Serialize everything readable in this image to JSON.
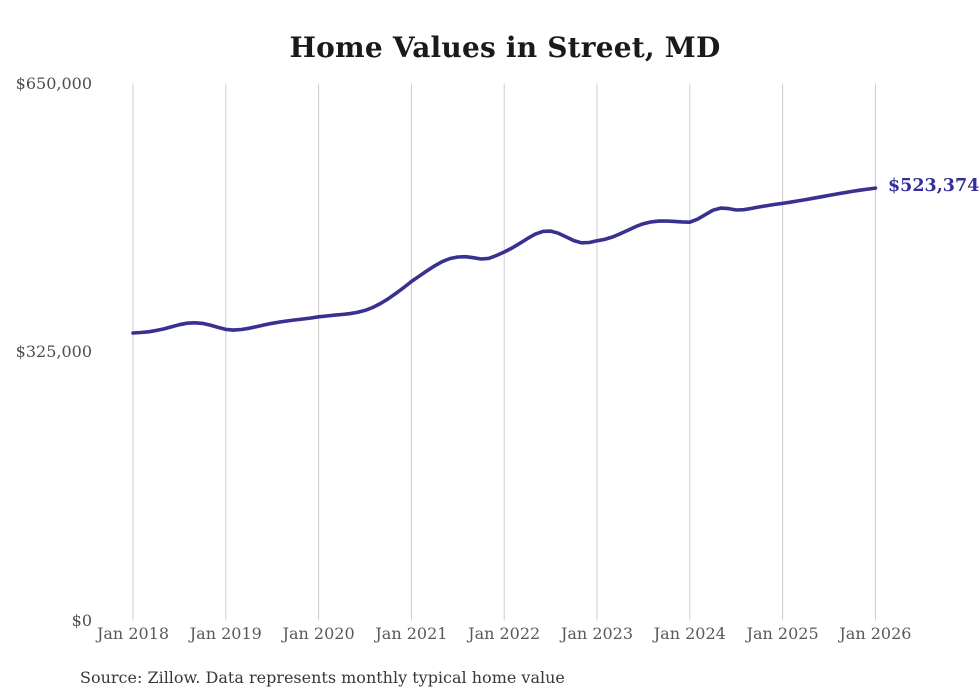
{
  "figure": {
    "title": "Home Values in Street, MD",
    "source_note": "Source: Zillow. Data represents monthly typical home value"
  },
  "chart_data": {
    "type": "line",
    "title": "Home Values in Street, MD",
    "xlabel": "",
    "ylabel": "",
    "x_start": "2018-01",
    "x_end": "2026-01",
    "frequency": "monthly",
    "ylim": [
      0,
      650000
    ],
    "grid": "vertical-only",
    "legend": "none",
    "final_value": 523374,
    "final_value_label": "$523,374",
    "y_ticks": [
      {
        "value": 650000,
        "label": "$650,000"
      },
      {
        "value": 325000,
        "label": "$325,000"
      },
      {
        "value": 0,
        "label": "$0"
      }
    ],
    "x_tick_labels": [
      "Jan 2018",
      "Jan 2019",
      "Jan 2020",
      "Jan 2021",
      "Jan 2022",
      "Jan 2023",
      "Jan 2024",
      "Jan 2025",
      "Jan 2026"
    ],
    "values": [
      348000,
      348600,
      349500,
      351000,
      353000,
      355500,
      358000,
      359800,
      360300,
      359600,
      357600,
      354800,
      352300,
      351500,
      352200,
      353700,
      355700,
      357800,
      359700,
      361300,
      362600,
      363800,
      364900,
      366200,
      367600,
      368600,
      369500,
      370400,
      371400,
      372900,
      375300,
      378900,
      383700,
      389400,
      395900,
      402900,
      410300,
      416800,
      423200,
      429200,
      434400,
      438200,
      440000,
      440300,
      439200,
      437600,
      438300,
      441800,
      446000,
      450800,
      456400,
      462300,
      467600,
      471000,
      471400,
      468800,
      464300,
      459900,
      457200,
      457600,
      459600,
      461300,
      464200,
      468100,
      472400,
      476800,
      480300,
      482500,
      483400,
      483600,
      483100,
      482500,
      482100,
      485800,
      491200,
      496600,
      499200,
      498600,
      496900,
      497300,
      498800,
      500600,
      502200,
      503600,
      504900,
      506300,
      507900,
      509500,
      511200,
      512900,
      514600,
      516200,
      517800,
      519400,
      520900,
      522200,
      523374
    ],
    "colors": {
      "line": "#38318f",
      "final_label": "#322f9a",
      "gridline": "#cccccc",
      "title": "#1a1a1a",
      "y_tick_text": "#4d4d4d",
      "x_tick_text": "#595959",
      "source_text": "#383838",
      "background": "#ffffff"
    }
  }
}
